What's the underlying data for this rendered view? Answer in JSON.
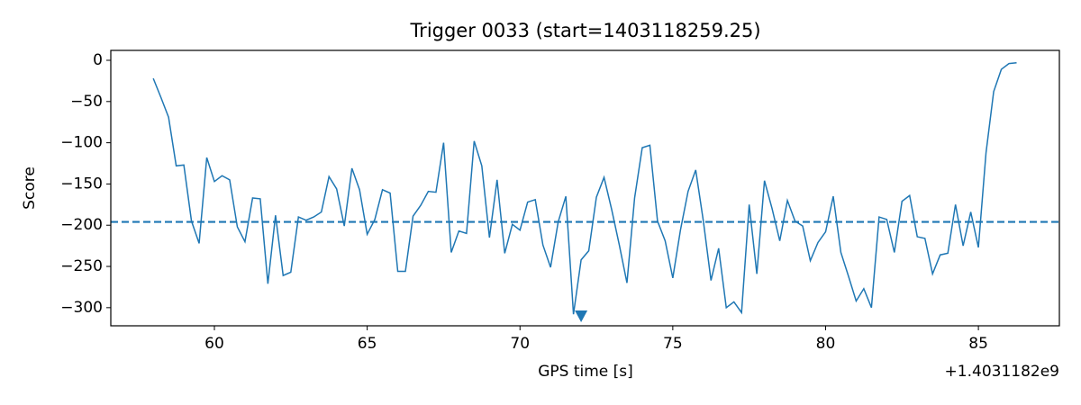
{
  "chart_data": {
    "type": "line",
    "title": "Trigger 0033 (start=1403118259.25)",
    "xlabel": "GPS time [s]",
    "ylabel": "Score",
    "x_offset_label": "+1.4031182e9",
    "x": [
      58.0,
      58.25,
      58.5,
      58.75,
      59.0,
      59.25,
      59.5,
      59.75,
      60.0,
      60.25,
      60.5,
      60.75,
      61.0,
      61.25,
      61.5,
      61.75,
      62.0,
      62.25,
      62.5,
      62.75,
      63.0,
      63.25,
      63.5,
      63.75,
      64.0,
      64.25,
      64.5,
      64.75,
      65.0,
      65.25,
      65.5,
      65.75,
      66.0,
      66.25,
      66.5,
      66.75,
      67.0,
      67.25,
      67.5,
      67.75,
      68.0,
      68.25,
      68.5,
      68.75,
      69.0,
      69.25,
      69.5,
      69.75,
      70.0,
      70.25,
      70.5,
      70.75,
      71.0,
      71.25,
      71.5,
      71.75,
      72.0,
      72.25,
      72.5,
      72.75,
      73.0,
      73.25,
      73.5,
      73.75,
      74.0,
      74.25,
      74.5,
      74.75,
      75.0,
      75.25,
      75.5,
      75.75,
      76.0,
      76.25,
      76.5,
      76.75,
      77.0,
      77.25,
      77.5,
      77.75,
      78.0,
      78.25,
      78.5,
      78.75,
      79.0,
      79.25,
      79.5,
      79.75,
      80.0,
      80.25,
      80.5,
      80.75,
      81.0,
      81.25,
      81.5,
      81.75,
      82.0,
      82.25,
      82.5,
      82.75,
      83.0,
      83.25,
      83.5,
      83.75,
      84.0,
      84.25,
      84.5,
      84.75,
      85.0,
      85.25,
      85.5,
      85.75,
      86.0,
      86.25
    ],
    "series": [
      {
        "color": "#1f77b4",
        "values": [
          -22,
          -45,
          -69,
          -128,
          -127,
          -195,
          -222,
          -118,
          -147,
          -140,
          -145,
          -202,
          -220,
          -167,
          -168,
          -271,
          -188,
          -261,
          -257,
          -190,
          -194,
          -190,
          -184,
          -141,
          -156,
          -201,
          -131,
          -157,
          -211,
          -193,
          -157,
          -161,
          -256,
          -256,
          -189,
          -176,
          -159,
          -160,
          -100,
          -233,
          -207,
          -210,
          -98,
          -128,
          -215,
          -145,
          -234,
          -199,
          -206,
          -172,
          -169,
          -224,
          -251,
          -196,
          -165,
          -308,
          -242,
          -231,
          -166,
          -142,
          -181,
          -224,
          -270,
          -167,
          -106,
          -103,
          -195,
          -219,
          -264,
          -206,
          -159,
          -133,
          -195,
          -267,
          -228,
          -300,
          -293,
          -306,
          -175,
          -259,
          -146,
          -180,
          -219,
          -170,
          -195,
          -201,
          -243,
          -221,
          -208,
          -165,
          -233,
          -262,
          -292,
          -277,
          -300,
          -190,
          -193,
          -233,
          -171,
          -164,
          -214,
          -216,
          -259,
          -236,
          -234,
          -175,
          -225,
          -184,
          -227,
          -112,
          -38,
          -11,
          -4,
          -3
        ]
      }
    ],
    "threshold": {
      "value": -196,
      "color": "#1f77b4"
    },
    "marker": {
      "x": 72.0,
      "y": -310,
      "color": "#1f77b4"
    },
    "xlim": [
      56.61,
      87.65
    ],
    "ylim": [
      -322,
      12
    ],
    "xticks": [
      60,
      65,
      70,
      75,
      80,
      85
    ],
    "yticks": [
      0,
      {
        "value": -50,
        "label": "−50"
      },
      {
        "value": -100,
        "label": "−100"
      },
      {
        "value": -150,
        "label": "−150"
      },
      {
        "value": -200,
        "label": "−200"
      },
      {
        "value": -250,
        "label": "−250"
      },
      {
        "value": -300,
        "label": "−300"
      }
    ]
  }
}
